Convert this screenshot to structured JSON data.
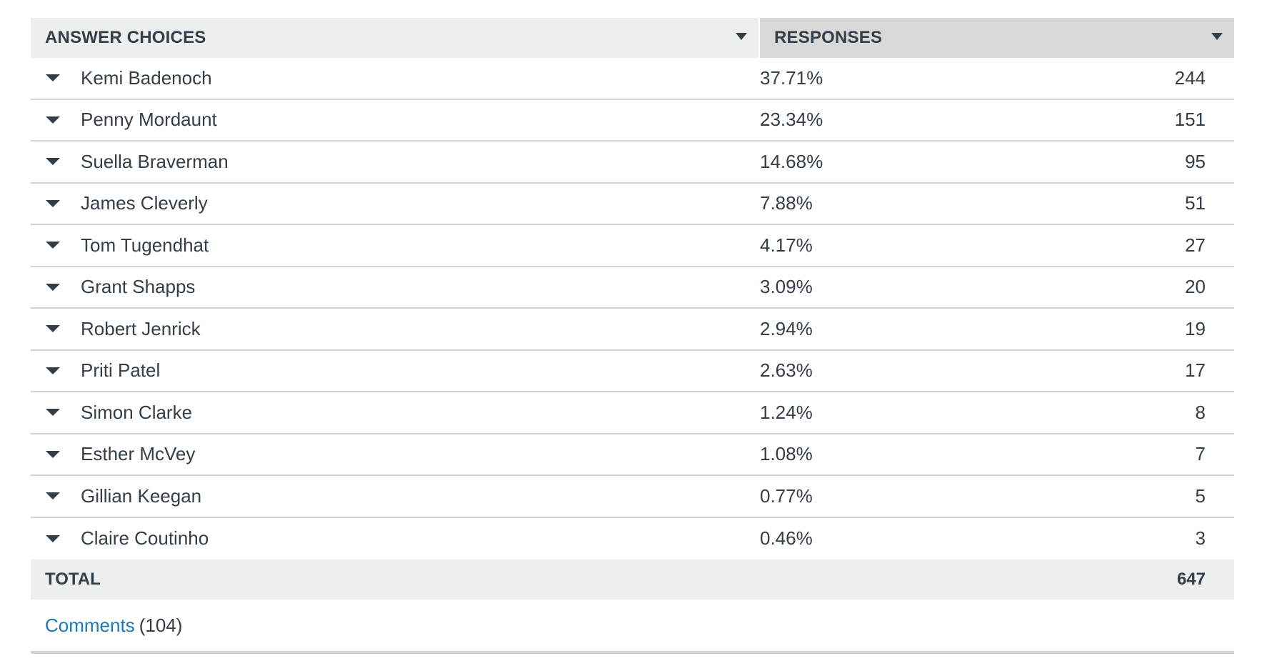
{
  "table": {
    "header": {
      "answer_choices": "ANSWER CHOICES",
      "responses": "RESPONSES"
    },
    "rows": [
      {
        "name": "Kemi Badenoch",
        "percent": "37.71%",
        "count": "244"
      },
      {
        "name": "Penny Mordaunt",
        "percent": "23.34%",
        "count": "151"
      },
      {
        "name": "Suella Braverman",
        "percent": "14.68%",
        "count": "95"
      },
      {
        "name": "James Cleverly",
        "percent": "7.88%",
        "count": "51"
      },
      {
        "name": "Tom Tugendhat",
        "percent": "4.17%",
        "count": "27"
      },
      {
        "name": "Grant Shapps",
        "percent": "3.09%",
        "count": "20"
      },
      {
        "name": "Robert Jenrick",
        "percent": "2.94%",
        "count": "19"
      },
      {
        "name": "Priti Patel",
        "percent": "2.63%",
        "count": "17"
      },
      {
        "name": "Simon Clarke",
        "percent": "1.24%",
        "count": "8"
      },
      {
        "name": "Esther McVey",
        "percent": "1.08%",
        "count": "7"
      },
      {
        "name": "Gillian Keegan",
        "percent": "0.77%",
        "count": "5"
      },
      {
        "name": "Claire Coutinho",
        "percent": "0.46%",
        "count": "3"
      }
    ],
    "total": {
      "label": "TOTAL",
      "value": "647"
    }
  },
  "comments": {
    "link_label": "Comments",
    "count": "(104)"
  },
  "colors": {
    "text": "#333e48",
    "header_bg": "#edeeee",
    "header_sorted_bg": "#d9d9d9",
    "divider": "#d0d2d3",
    "link": "#1b7ab3"
  },
  "icons": {
    "sort": "caret-down-icon",
    "row_expand": "caret-down-icon"
  }
}
